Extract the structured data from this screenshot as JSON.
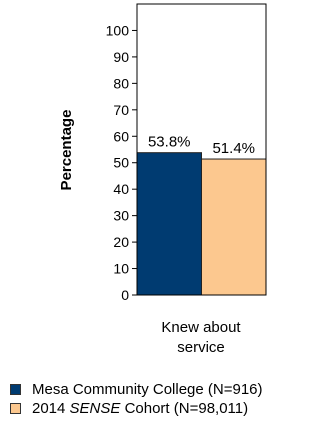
{
  "chart_data": {
    "type": "bar",
    "categories": [
      "Knew about service"
    ],
    "category_label_lines": [
      "Knew about",
      "service"
    ],
    "series": [
      {
        "name": "Mesa Community College (N=916)",
        "values": [
          53.8
        ],
        "labels": [
          "53.8%"
        ],
        "color": "#003b71"
      },
      {
        "name": "2014 SENSE Cohort (N=98,011)",
        "values": [
          51.4
        ],
        "labels": [
          "51.4%"
        ],
        "color": "#fcc88f"
      }
    ],
    "ylabel": "Percentage",
    "ylim": [
      0,
      110
    ],
    "yticks": [
      0,
      10,
      20,
      30,
      40,
      50,
      60,
      70,
      80,
      90,
      100
    ],
    "grid": false,
    "legend_position": "bottom-left"
  },
  "legend": {
    "items": [
      {
        "text_pre": "Mesa Community College (N=916)",
        "text_italic": "",
        "text_post": "",
        "color": "#003b71"
      },
      {
        "text_pre": "2014 ",
        "text_italic": "SENSE",
        "text_post": " Cohort (N=98,011)",
        "color": "#fcc88f"
      }
    ]
  }
}
